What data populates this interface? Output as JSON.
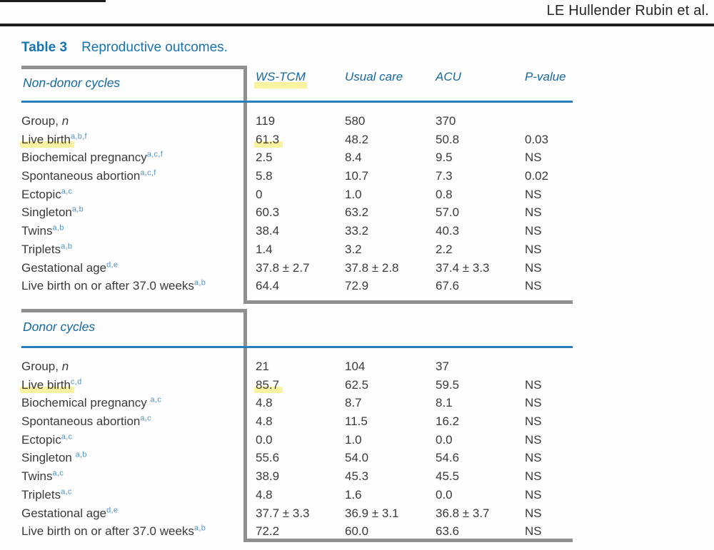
{
  "header": {
    "author": "LE Hullender Rubin et al."
  },
  "caption": {
    "label": "Table 3",
    "title": "Reproductive outcomes."
  },
  "columns": [
    "WS-TCM",
    "Usual care",
    "ACU",
    "P-value"
  ],
  "colors": {
    "accent_blue": "#1873af",
    "italic_header_blue": "#16689f",
    "rule_blue": "#2b7cb8",
    "gray_line": "#8f8f8f",
    "highlight_yellow": "#f9f2a0",
    "body_text": "#3a3a3a",
    "superscript_blue": "#5291c5"
  },
  "sections": [
    {
      "title": "Non-donor cycles",
      "rows": [
        {
          "label": "Group, ",
          "label_italic": "n",
          "sup": "",
          "values": [
            "119",
            "580",
            "370",
            ""
          ]
        },
        {
          "label": "Live birth",
          "sup": "a,b,f",
          "hl_label": true,
          "hl_value": true,
          "values": [
            "61.3",
            "48.2",
            "50.8",
            "0.03"
          ]
        },
        {
          "label": "Biochemical pregnancy",
          "sup": "a,c,f",
          "values": [
            "2.5",
            "8.4",
            "9.5",
            "NS"
          ]
        },
        {
          "label": "Spontaneous abortion",
          "sup": "a,c,f",
          "values": [
            "5.8",
            "10.7",
            "7.3",
            "0.02"
          ]
        },
        {
          "label": "Ectopic",
          "sup": "a,c",
          "values": [
            "0",
            "1.0",
            "0.8",
            "NS"
          ]
        },
        {
          "label": "Singleton",
          "sup": "a,b",
          "values": [
            "60.3",
            "63.2",
            "57.0",
            "NS"
          ]
        },
        {
          "label": "Twins",
          "sup": "a,b",
          "values": [
            "38.4",
            "33.2",
            "40.3",
            "NS"
          ]
        },
        {
          "label": "Triplets",
          "sup": "a,b",
          "values": [
            "1.4",
            "3.2",
            "2.2",
            "NS"
          ]
        },
        {
          "label": "Gestational age",
          "sup": "d,e",
          "values": [
            "37.8 ± 2.7",
            "37.8 ± 2.8",
            "37.4 ± 3.3",
            "NS"
          ]
        },
        {
          "label": "Live birth on or after 37.0 weeks",
          "sup": "a,b",
          "values": [
            "64.4",
            "72.9",
            "67.6",
            "NS"
          ]
        }
      ]
    },
    {
      "title": "Donor cycles",
      "rows": [
        {
          "label": "Group, ",
          "label_italic": "n",
          "sup": "",
          "values": [
            "21",
            "104",
            "37",
            ""
          ]
        },
        {
          "label": "Live birth",
          "sup": "c,d",
          "hl_label": true,
          "hl_value": true,
          "values": [
            "85.7",
            "62.5",
            "59.5",
            "NS"
          ]
        },
        {
          "label": "Biochemical pregnancy ",
          "sup": "a,c",
          "values": [
            "4.8",
            "8.7",
            "8.1",
            "NS"
          ]
        },
        {
          "label": "Spontaneous abortion",
          "sup": "a,c",
          "values": [
            "4.8",
            "11.5",
            "16.2",
            "NS"
          ]
        },
        {
          "label": "Ectopic",
          "sup": "a,c",
          "values": [
            "0.0",
            "1.0",
            "0.0",
            "NS"
          ]
        },
        {
          "label": "Singleton ",
          "sup": "a,b",
          "values": [
            "55.6",
            "54.0",
            "54.6",
            "NS"
          ]
        },
        {
          "label": "Twins",
          "sup": "a,c",
          "values": [
            "38.9",
            "45.3",
            "45.5",
            "NS"
          ]
        },
        {
          "label": "Triplets",
          "sup": "a,c",
          "values": [
            "4.8",
            "1.6",
            "0.0",
            "NS"
          ]
        },
        {
          "label": "Gestational age",
          "sup": "d,e",
          "values": [
            "37.7 ± 3.3",
            "36.9 ± 3.1",
            "36.8 ± 3.7",
            "NS"
          ]
        },
        {
          "label": "Live birth on or after 37.0 weeks",
          "sup": "a,b",
          "values": [
            "72.2",
            "60.0",
            "63.6",
            "NS"
          ]
        }
      ]
    }
  ]
}
